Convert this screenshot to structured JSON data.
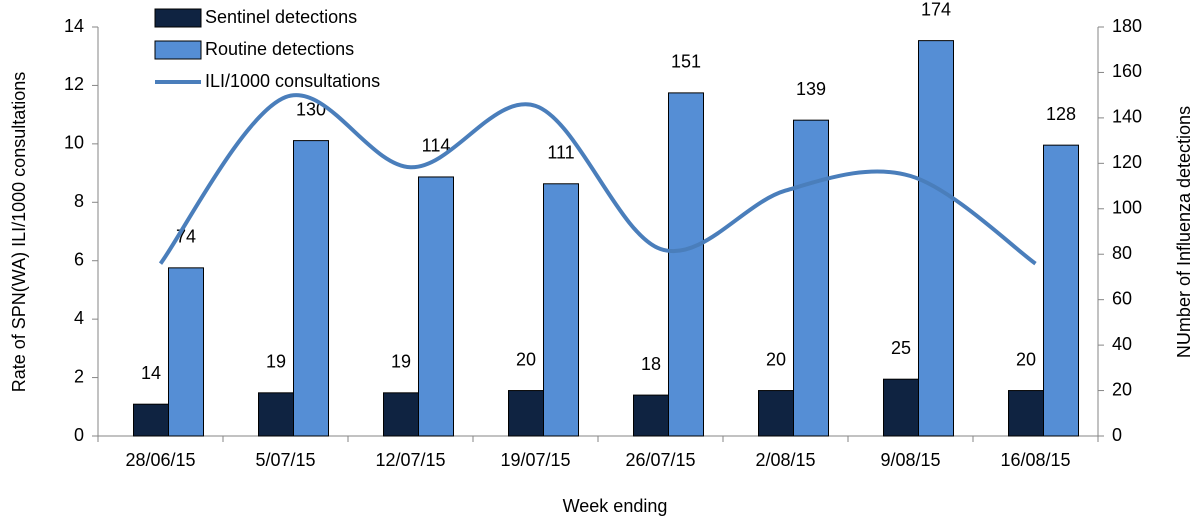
{
  "chart_data": {
    "type": "combo",
    "xlabel": "Week ending",
    "ylabel": "Rate of SPN(WA) ILI/1000 consultations",
    "y2label": "NUmber of Influenza detections",
    "categories": [
      "28/06/15",
      "5/07/15",
      "12/07/15",
      "19/07/15",
      "26/07/15",
      "2/08/15",
      "9/08/15",
      "16/08/15"
    ],
    "ylim": [
      0,
      14
    ],
    "yticks": [
      0,
      2,
      4,
      6,
      8,
      10,
      12,
      14
    ],
    "y2lim": [
      0,
      180
    ],
    "y2ticks": [
      0,
      20,
      40,
      60,
      80,
      100,
      120,
      140,
      160,
      180
    ],
    "legend": "top-left",
    "series": [
      {
        "name": "Sentinel detections",
        "type": "bar",
        "axis": "y2",
        "color": "#0f2341",
        "values": [
          14,
          19,
          19,
          20,
          18,
          20,
          25,
          20
        ]
      },
      {
        "name": "Routine detections",
        "type": "bar",
        "axis": "y2",
        "color": "#558ed5",
        "values": [
          74,
          130,
          114,
          111,
          151,
          139,
          174,
          128
        ]
      },
      {
        "name": "ILI/1000 consultations",
        "type": "line",
        "smooth": true,
        "color": "#4a7ebb",
        "values": [
          5.9,
          11.6,
          9.2,
          11.3,
          6.4,
          8.4,
          8.9,
          5.9
        ]
      }
    ]
  }
}
